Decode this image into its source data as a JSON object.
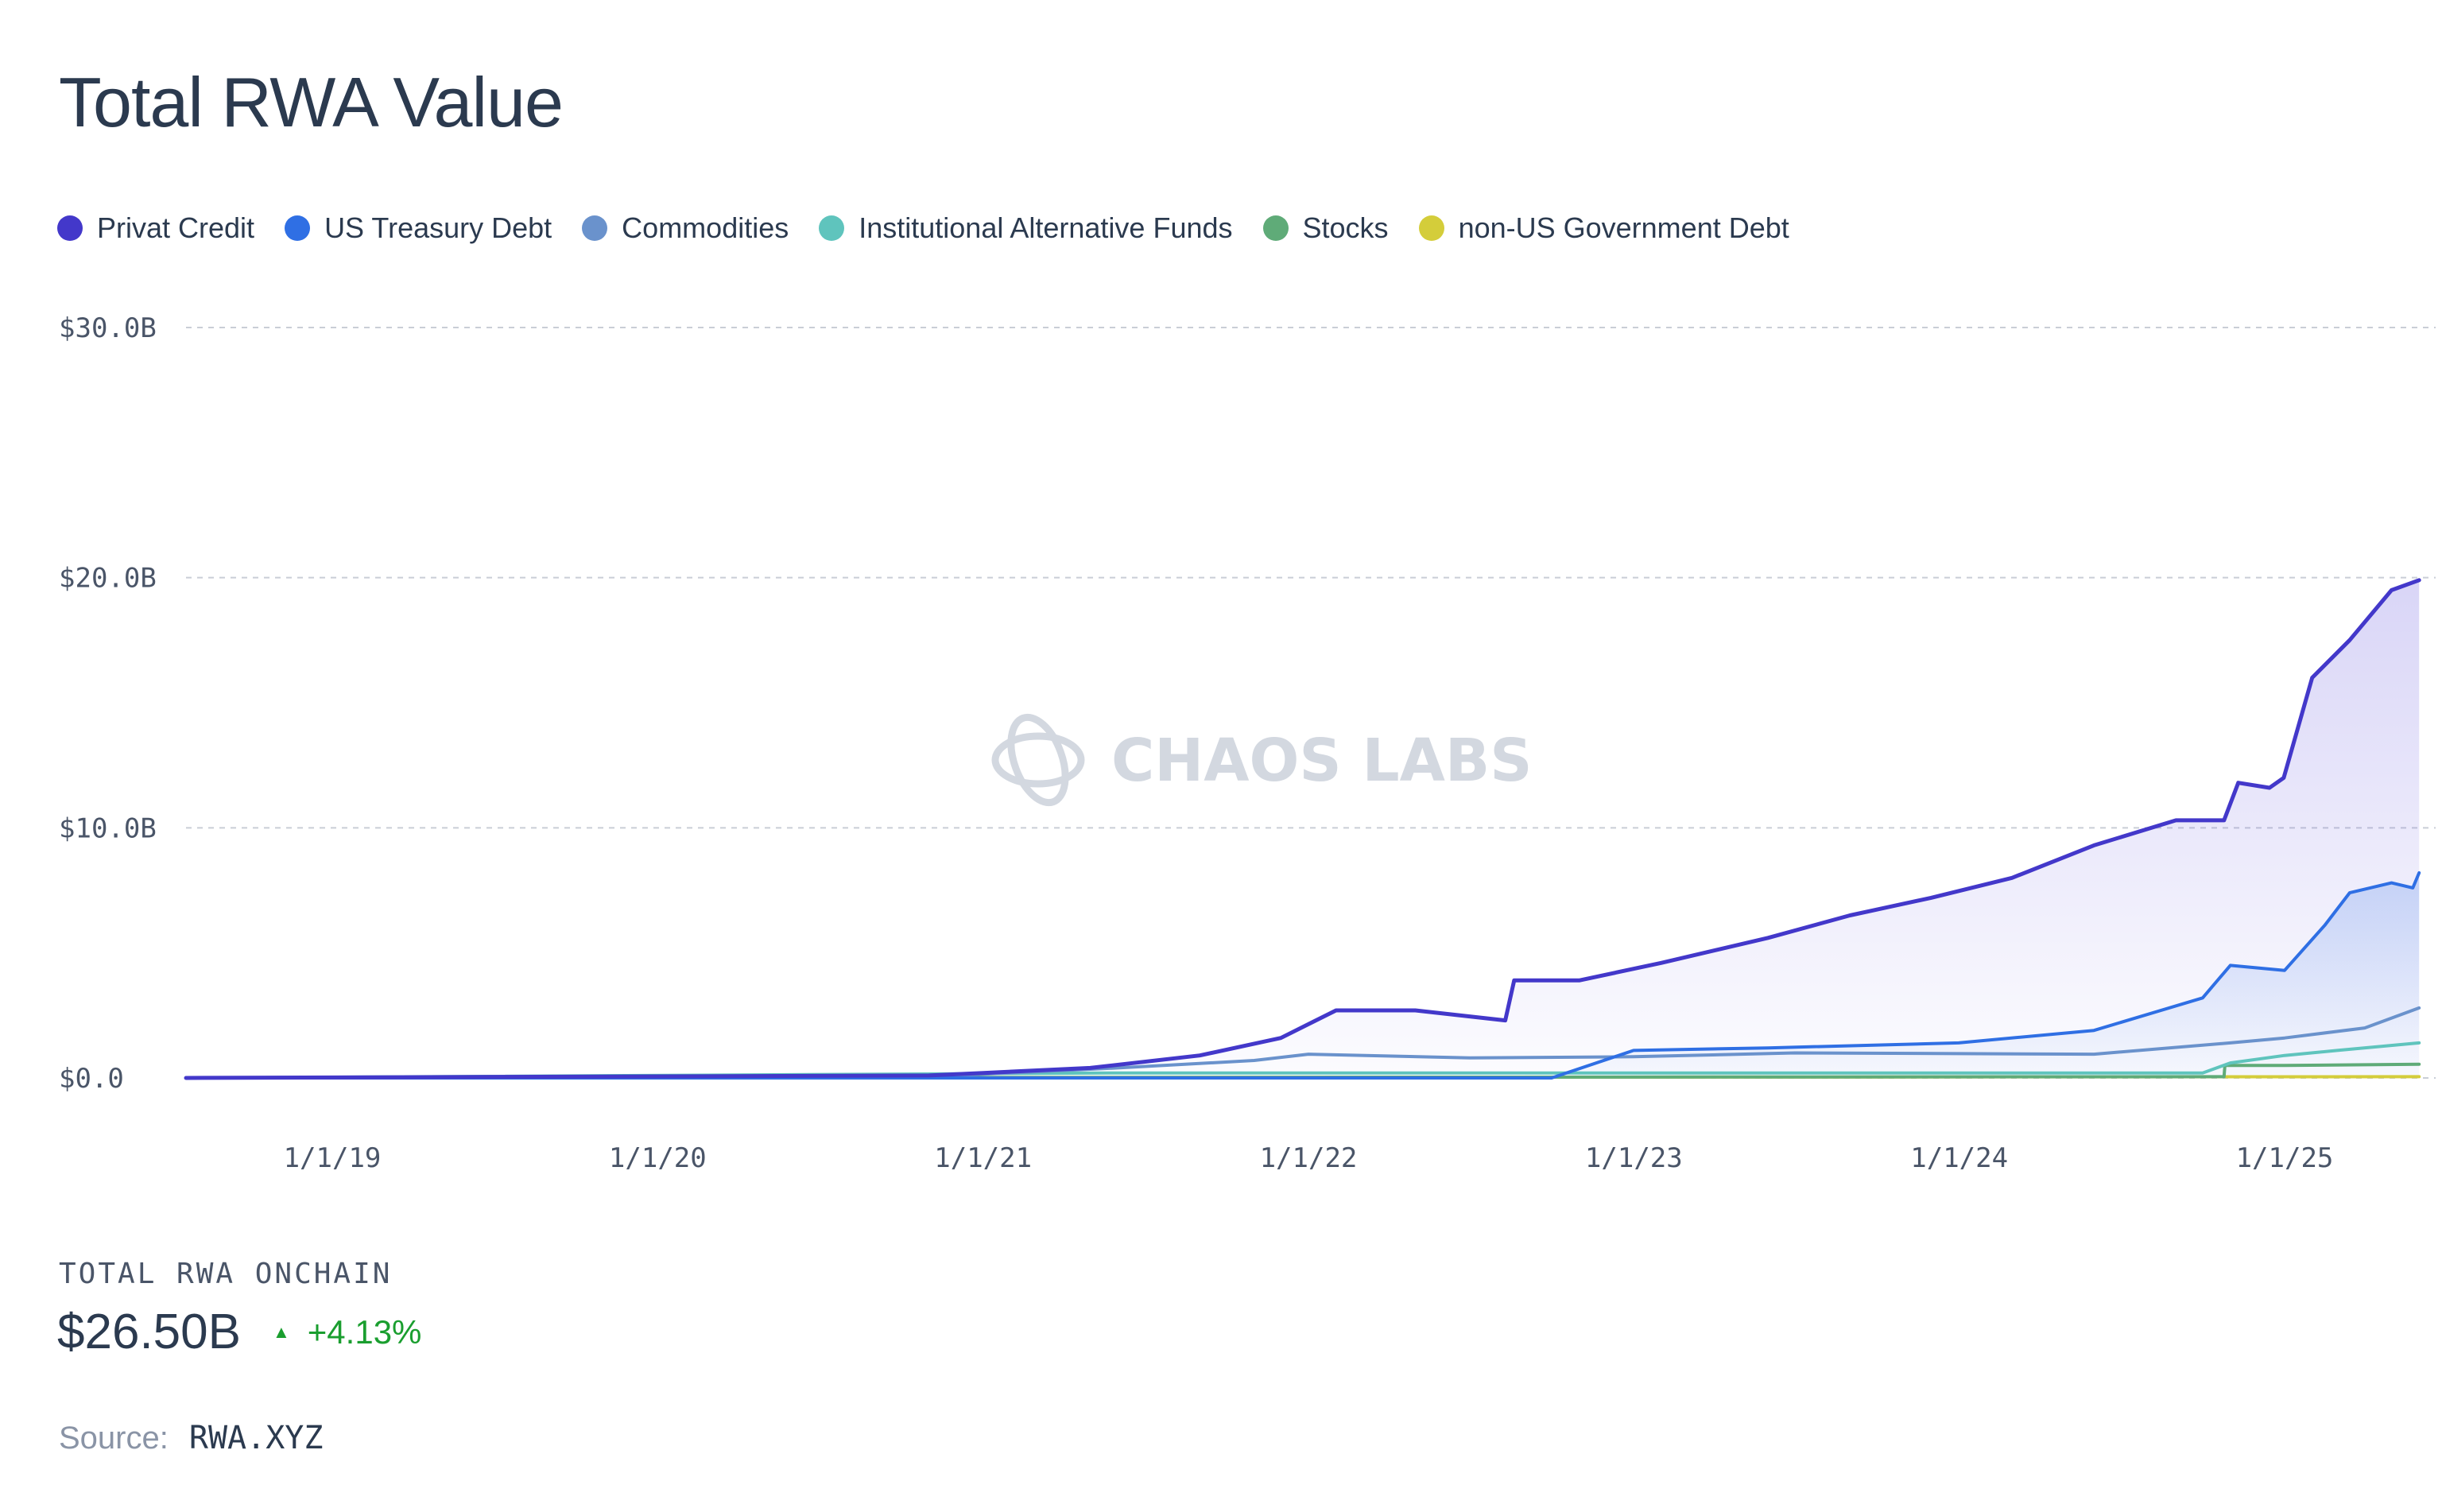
{
  "title": "Total RWA Value",
  "legend": [
    {
      "label": "Privat Credit",
      "color": "#4338ca"
    },
    {
      "label": "US Treasury Debt",
      "color": "#2f6fe4"
    },
    {
      "label": "Commodities",
      "color": "#6a92cc"
    },
    {
      "label": "Institutional Alternative Funds",
      "color": "#5fc4bd"
    },
    {
      "label": "Stocks",
      "color": "#5fab78"
    },
    {
      "label": "non-US Government Debt",
      "color": "#d4cd3a"
    }
  ],
  "watermark": "CHAOS LABS",
  "chart_data": {
    "type": "area",
    "title": "Total RWA Value",
    "xlabel": "",
    "ylabel": "",
    "x_ticks": [
      "1/1/19",
      "1/1/20",
      "1/1/21",
      "1/1/22",
      "1/1/23",
      "1/1/24",
      "1/1/25"
    ],
    "y_ticks": [
      "$0.0",
      "$10.0B",
      "$20.0B",
      "$30.0B"
    ],
    "ylim": [
      0,
      30
    ],
    "y_unit": "$B",
    "grid": "horizontal dashed",
    "legend_position": "top-left",
    "series": [
      {
        "name": "Privat Credit",
        "color": "#4338ca",
        "x": [
          "2018-07-20",
          "2020-11-01",
          "2021-01-01",
          "2021-05-01",
          "2021-09-01",
          "2021-12-01",
          "2022-02-01",
          "2022-05-01",
          "2022-08-10",
          "2022-08-20",
          "2022-11-01",
          "2023-02-01",
          "2023-06-01",
          "2023-09-01",
          "2023-12-01",
          "2024-03-01",
          "2024-06-01",
          "2024-09-01",
          "2024-10-25",
          "2024-11-10",
          "2024-12-15",
          "2024-12-31",
          "2025-02-01",
          "2025-03-15",
          "2025-05-01",
          "2025-06-01"
        ],
        "values": [
          0.0,
          0.1,
          0.2,
          0.4,
          0.9,
          1.6,
          2.7,
          2.7,
          2.3,
          3.9,
          3.9,
          4.6,
          5.6,
          6.5,
          7.2,
          8.0,
          9.3,
          10.3,
          10.3,
          11.8,
          11.6,
          12.0,
          16.0,
          17.5,
          19.5,
          19.9
        ]
      },
      {
        "name": "US Treasury Debt",
        "color": "#2f6fe4",
        "x": [
          "2018-07-20",
          "2022-10-01",
          "2023-01-01",
          "2023-06-01",
          "2024-01-01",
          "2024-06-01",
          "2024-10-01",
          "2024-11-01",
          "2025-01-01",
          "2025-02-15",
          "2025-03-15",
          "2025-05-01",
          "2025-05-25",
          "2025-06-01"
        ],
        "values": [
          0.0,
          0.0,
          1.1,
          1.2,
          1.4,
          1.9,
          3.2,
          4.5,
          4.3,
          6.1,
          7.4,
          7.8,
          7.6,
          8.2
        ]
      },
      {
        "name": "Commodities",
        "color": "#6a92cc",
        "x": [
          "2018-07-20",
          "2020-12-01",
          "2021-06-01",
          "2021-11-01",
          "2022-01-01",
          "2022-07-01",
          "2023-01-01",
          "2023-07-01",
          "2024-06-01",
          "2024-11-01",
          "2025-01-01",
          "2025-04-01",
          "2025-06-01"
        ],
        "values": [
          0.0,
          0.1,
          0.4,
          0.7,
          0.95,
          0.8,
          0.85,
          1.0,
          0.95,
          1.4,
          1.6,
          2.0,
          2.8
        ]
      },
      {
        "name": "Institutional Alternative Funds",
        "color": "#5fc4bd",
        "x": [
          "2018-07-20",
          "2021-06-01",
          "2024-10-01",
          "2024-11-01",
          "2025-01-01",
          "2025-03-01",
          "2025-06-01"
        ],
        "values": [
          0.0,
          0.2,
          0.2,
          0.6,
          0.9,
          1.1,
          1.4
        ]
      },
      {
        "name": "Stocks",
        "color": "#5fab78",
        "x": [
          "2018-07-20",
          "2024-10-25",
          "2024-10-26",
          "2025-01-01",
          "2025-06-01"
        ],
        "values": [
          0.0,
          0.05,
          0.5,
          0.5,
          0.55
        ]
      },
      {
        "name": "non-US Government Debt",
        "color": "#d4cd3a",
        "x": [
          "2018-07-20",
          "2025-06-01"
        ],
        "values": [
          0.0,
          0.05
        ]
      }
    ]
  },
  "summary": {
    "label": "TOTAL RWA ONCHAIN",
    "value": "$26.50B",
    "change_icon": "triangle-up-icon",
    "change": "+4.13%"
  },
  "source": {
    "label": "Source:",
    "value": "RWA.XYZ"
  }
}
